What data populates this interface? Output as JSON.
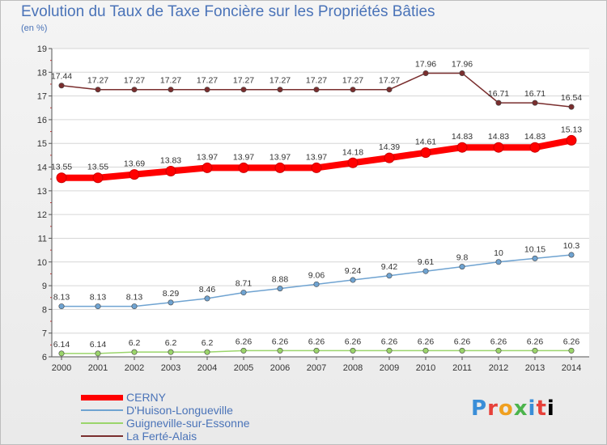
{
  "chart_data": {
    "type": "line",
    "title": "Evolution du Taux de Taxe Foncière sur les Propriétés Bâties",
    "subtitle": "(en %)",
    "xlabel": "",
    "ylabel": "(en %)",
    "x": [
      "2000",
      "2001",
      "2002",
      "2003",
      "2004",
      "2005",
      "2006",
      "2007",
      "2008",
      "2009",
      "2010",
      "2011",
      "2012",
      "2013",
      "2014"
    ],
    "ylim": [
      6,
      19
    ],
    "yticks": [
      "6",
      "7",
      "8",
      "9",
      "10",
      "11",
      "12",
      "13",
      "14",
      "15",
      "16",
      "17",
      "18",
      "19"
    ],
    "legend_position": "bottom-left",
    "series": [
      {
        "name": "CERNY",
        "color": "#ff0000",
        "values": [
          13.55,
          13.55,
          13.69,
          13.83,
          13.97,
          13.97,
          13.97,
          13.97,
          14.18,
          14.39,
          14.61,
          14.83,
          14.83,
          14.83,
          15.13
        ]
      },
      {
        "name": "D'Huison-Longueville",
        "color": "#6fa3d1",
        "values": [
          8.13,
          8.13,
          8.13,
          8.29,
          8.46,
          8.71,
          8.88,
          9.06,
          9.24,
          9.42,
          9.61,
          9.8,
          10,
          10.15,
          10.3
        ]
      },
      {
        "name": "Guigneville-sur-Essonne",
        "color": "#9bd56b",
        "values": [
          6.14,
          6.14,
          6.2,
          6.2,
          6.2,
          6.26,
          6.26,
          6.26,
          6.26,
          6.26,
          6.26,
          6.26,
          6.26,
          6.26,
          6.26
        ]
      },
      {
        "name": "La Ferté-Alais",
        "color": "#7a2e2e",
        "values": [
          17.44,
          17.27,
          17.27,
          17.27,
          17.27,
          17.27,
          17.27,
          17.27,
          17.27,
          17.27,
          17.96,
          17.96,
          16.71,
          16.71,
          16.54
        ]
      }
    ]
  },
  "logo": {
    "letters": [
      "P",
      "r",
      "o",
      "x",
      "i",
      "t",
      "i"
    ]
  }
}
